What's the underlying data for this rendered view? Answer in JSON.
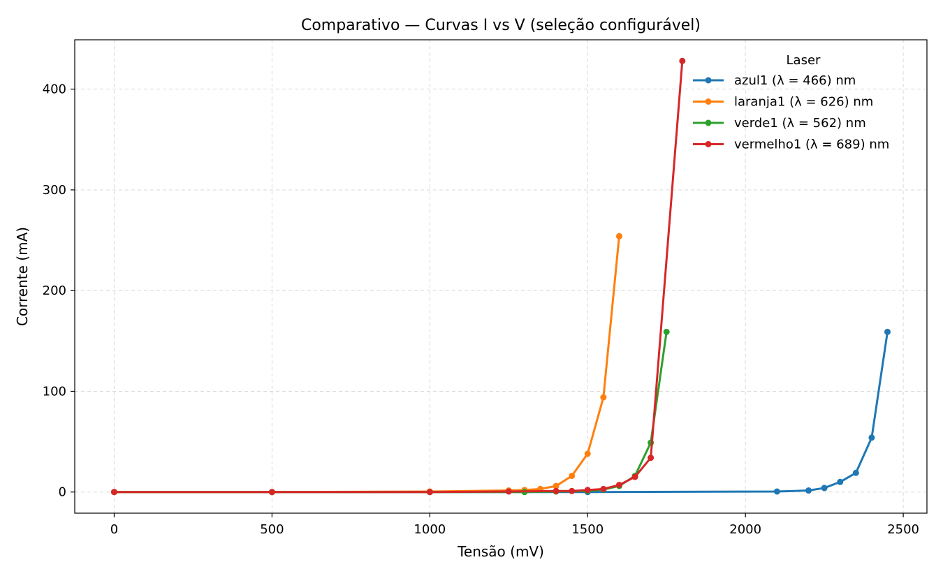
{
  "chart_data": {
    "type": "line",
    "title": "Comparativo — Curvas I vs V (seleção configurável)",
    "xlabel": "Tensão (mV)",
    "ylabel": "Corrente (mA)",
    "xlim": [
      -125,
      2575
    ],
    "ylim": [
      -21,
      449
    ],
    "xticks": [
      0,
      500,
      1000,
      1500,
      2000,
      2500
    ],
    "yticks": [
      0,
      100,
      200,
      300,
      400
    ],
    "grid": true,
    "legend": {
      "title": "Laser",
      "placement": "top-right"
    },
    "series": [
      {
        "name": "azul1 (λ = 466) nm",
        "color": "#1f77b4",
        "x": [
          0,
          500,
          1000,
          1500,
          2100,
          2200,
          2250,
          2300,
          2350,
          2400,
          2450
        ],
        "y": [
          0,
          0,
          0,
          0,
          0.5,
          1.5,
          4,
          10,
          19,
          54,
          159
        ]
      },
      {
        "name": "laranja1 (λ = 626) nm",
        "color": "#ff7f0e",
        "x": [
          0,
          500,
          1000,
          1250,
          1300,
          1350,
          1400,
          1450,
          1500,
          1550,
          1600
        ],
        "y": [
          0,
          0,
          0.5,
          1.5,
          2,
          3,
          6,
          16,
          38,
          94,
          254
        ]
      },
      {
        "name": "verde1 (λ = 562) nm",
        "color": "#2ca02c",
        "x": [
          0,
          500,
          1000,
          1300,
          1400,
          1500,
          1550,
          1600,
          1650,
          1700,
          1750
        ],
        "y": [
          0,
          0,
          0,
          0,
          0.5,
          1,
          2.5,
          6,
          16,
          49,
          159
        ]
      },
      {
        "name": "vermelho1 (λ = 689) nm",
        "color": "#d62728",
        "x": [
          0,
          500,
          1000,
          1250,
          1400,
          1450,
          1500,
          1550,
          1600,
          1650,
          1700,
          1800
        ],
        "y": [
          0,
          0,
          0,
          0.5,
          1,
          1,
          2,
          3,
          7,
          15,
          34,
          428
        ]
      }
    ]
  }
}
